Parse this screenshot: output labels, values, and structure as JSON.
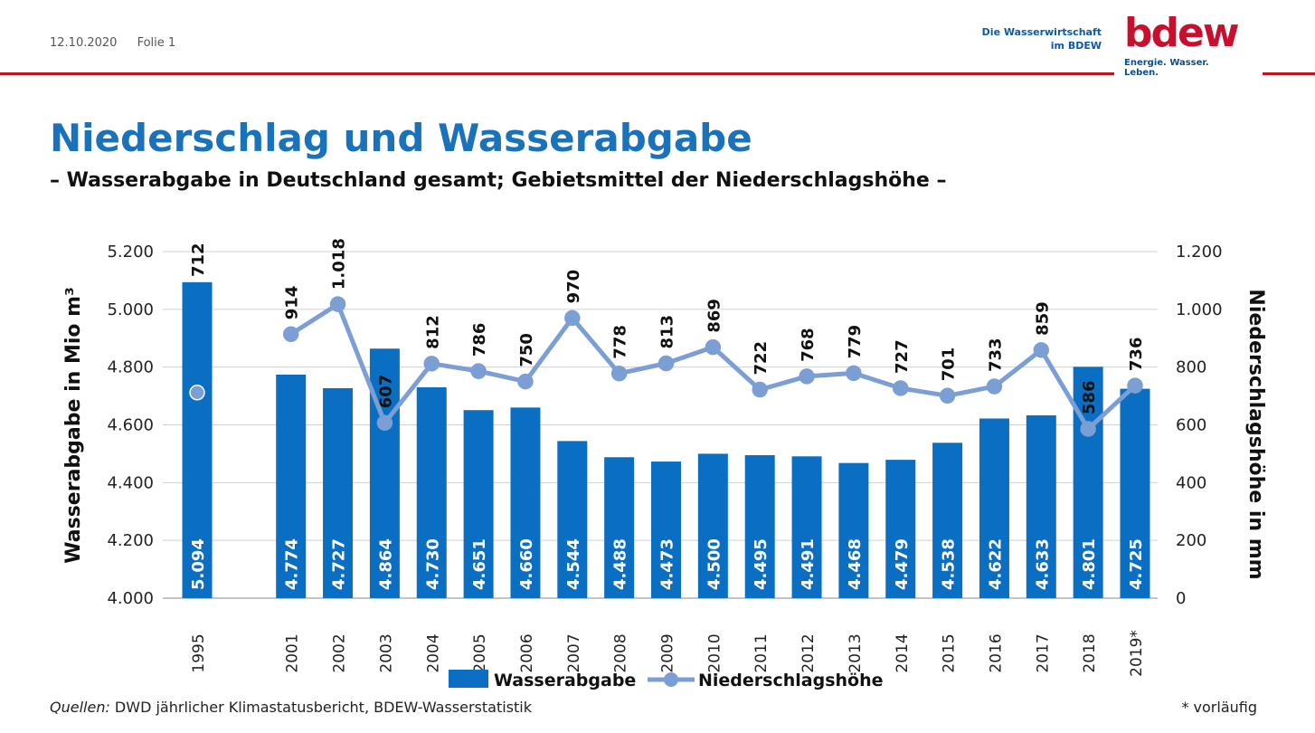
{
  "header": {
    "date": "12.10.2020",
    "slide": "Folie 1"
  },
  "brand": {
    "tagline_line1": "Die Wasserwirtschaft",
    "tagline_line2": "im BDEW",
    "logo_text": "bdew",
    "slogan": "Energie. Wasser. Leben.",
    "logo_color": "#c8102e"
  },
  "title": "Niederschlag und Wasserabgabe",
  "subtitle": "– Wasserabgabe in Deutschland gesamt; Gebietsmittel der Niederschlagshöhe –",
  "footer": {
    "source_label": "Quellen:",
    "source_text": " DWD jährlicher Klimastatusbericht, BDEW-Wasserstatistik",
    "note": "* vorläufig"
  },
  "chart_data": {
    "type": "bar+line",
    "categories": [
      "1995",
      "2001",
      "2002",
      "2003",
      "2004",
      "2005",
      "2006",
      "2007",
      "2008",
      "2009",
      "2010",
      "2011",
      "2012",
      "2013",
      "2014",
      "2015",
      "2016",
      "2017",
      "2018",
      "2019*"
    ],
    "category_slots": [
      0,
      2,
      3,
      4,
      5,
      6,
      7,
      8,
      9,
      10,
      11,
      12,
      13,
      14,
      15,
      16,
      17,
      18,
      19,
      20
    ],
    "series": [
      {
        "name": "Wasserabgabe",
        "type": "bar",
        "axis": "left",
        "color": "#0a6fc2",
        "values": [
          5094,
          4774,
          4727,
          4864,
          4730,
          4651,
          4660,
          4544,
          4488,
          4473,
          4500,
          4495,
          4491,
          4468,
          4479,
          4538,
          4622,
          4633,
          4801,
          4725
        ],
        "labels": [
          "5.094",
          "4.774",
          "4.727",
          "4.864",
          "4.730",
          "4.651",
          "4.660",
          "4.544",
          "4.488",
          "4.473",
          "4.500",
          "4.495",
          "4.491",
          "4.468",
          "4.479",
          "4.538",
          "4.622",
          "4.633",
          "4.801",
          "4.725"
        ]
      },
      {
        "name": "Niederschlagshöhe",
        "type": "line",
        "axis": "right",
        "color": "#7b9fd4",
        "values": [
          712,
          914,
          1018,
          607,
          812,
          786,
          750,
          970,
          778,
          813,
          869,
          722,
          768,
          779,
          727,
          701,
          733,
          859,
          586,
          736
        ],
        "labels": [
          "712",
          "914",
          "1.018",
          "607",
          "812",
          "786",
          "750",
          "970",
          "778",
          "813",
          "869",
          "722",
          "768",
          "779",
          "727",
          "701",
          "733",
          "859",
          "586",
          "736"
        ]
      }
    ],
    "left_axis": {
      "label": "Wasserabgabe in Mio m³",
      "ylim": [
        4000,
        5200
      ],
      "ticks": [
        5200,
        5000,
        4800,
        4600,
        4400,
        4200,
        4000
      ],
      "tick_labels": [
        "5.200",
        "5.000",
        "4.800",
        "4.600",
        "4.400",
        "4.200",
        "4.000"
      ]
    },
    "right_axis": {
      "label": "Niederschlagshöhe in mm",
      "ylim": [
        0,
        1200
      ],
      "ticks": [
        1200,
        1000,
        800,
        600,
        400,
        200,
        0
      ],
      "tick_labels": [
        "1.200",
        "1.000",
        "800",
        "600",
        "400",
        "200",
        "0"
      ]
    },
    "grid": true,
    "legend": "bottom"
  }
}
